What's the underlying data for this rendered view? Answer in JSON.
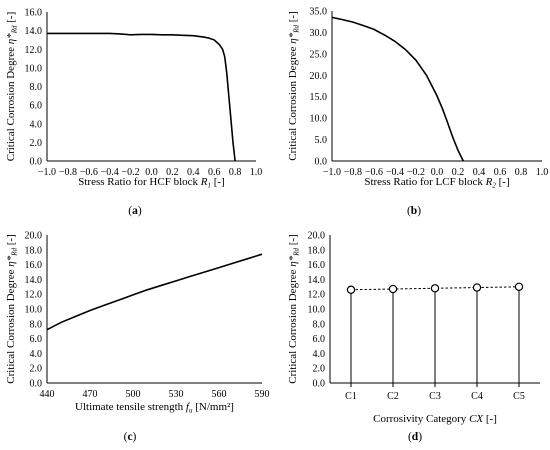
{
  "chart_data": [
    {
      "type": "line",
      "panel_label": "(a)",
      "xlabel": {
        "text": "Stress Ratio for HCF block ",
        "var": "R",
        "sub": "1",
        "unit": " [-]"
      },
      "ylabel": {
        "text": "Critical Corrosion Degree ",
        "var": "η*",
        "sub": "Rd",
        "unit": " [-]"
      },
      "xlim": [
        -1.0,
        1.0
      ],
      "ylim": [
        0.0,
        16.0
      ],
      "xticks": [
        "−1.0",
        "−0.8",
        "−0.6",
        "−0.4",
        "−0.2",
        "0.0",
        "0.2",
        "0.4",
        "0.6",
        "0.8",
        "1.0"
      ],
      "yticks": [
        "0.0",
        "2.0",
        "4.0",
        "6.0",
        "8.0",
        "10.0",
        "12.0",
        "14.0",
        "16.0"
      ],
      "series": [
        {
          "x": [
            -1.0,
            -0.8,
            -0.6,
            -0.4,
            -0.3,
            -0.2,
            -0.1,
            0.0,
            0.1,
            0.2,
            0.3,
            0.4,
            0.5,
            0.55,
            0.6,
            0.65,
            0.68,
            0.7,
            0.72,
            0.74,
            0.76,
            0.78,
            0.8
          ],
          "y": [
            13.7,
            13.7,
            13.7,
            13.7,
            13.65,
            13.55,
            13.6,
            13.6,
            13.55,
            13.55,
            13.5,
            13.45,
            13.3,
            13.2,
            13.0,
            12.5,
            12.0,
            11.2,
            9.5,
            7.0,
            4.5,
            2.0,
            0.0
          ]
        }
      ]
    },
    {
      "type": "line",
      "panel_label": "(b)",
      "xlabel": {
        "text": "Stress Ratio for LCF block ",
        "var": "R",
        "sub": "2",
        "unit": " [-]"
      },
      "ylabel": {
        "text": "Critical Corrosion Degree ",
        "var": "η*",
        "sub": "Rd",
        "unit": " [-]"
      },
      "xlim": [
        -1.0,
        1.0
      ],
      "ylim": [
        0.0,
        35.0
      ],
      "xticks": [
        "−1.0",
        "−0.8",
        "−0.6",
        "−0.4",
        "−0.2",
        "0.0",
        "0.2",
        "0.4",
        "0.6",
        "0.8",
        "1.0"
      ],
      "yticks": [
        "0.0",
        "5.0",
        "10.0",
        "15.0",
        "20.0",
        "25.0",
        "30.0",
        "35.0"
      ],
      "series": [
        {
          "x": [
            -1.0,
            -0.9,
            -0.8,
            -0.7,
            -0.6,
            -0.5,
            -0.4,
            -0.3,
            -0.2,
            -0.1,
            0.0,
            0.05,
            0.1,
            0.15,
            0.2,
            0.25
          ],
          "y": [
            33.5,
            33.0,
            32.4,
            31.6,
            30.7,
            29.4,
            27.9,
            26.0,
            23.5,
            20.0,
            15.2,
            12.3,
            9.0,
            5.5,
            2.5,
            0.0
          ]
        }
      ]
    },
    {
      "type": "line",
      "panel_label": "(c)",
      "xlabel": {
        "text": "Ultimate tensile strength ",
        "var": "f",
        "sub": "u",
        "unit": " [N/mm²]"
      },
      "ylabel": {
        "text": "Critical Corrosion Degree ",
        "var": "η*",
        "sub": "Rd",
        "unit": " [-]"
      },
      "xlim": [
        440,
        590
      ],
      "ylim": [
        0.0,
        20.0
      ],
      "xticks": [
        "440",
        "470",
        "500",
        "530",
        "560",
        "590"
      ],
      "yticks": [
        "0.0",
        "2.0",
        "4.0",
        "6.0",
        "8.0",
        "10.0",
        "12.0",
        "14.0",
        "16.0",
        "18.0",
        "20.0"
      ],
      "series": [
        {
          "x": [
            440,
            450,
            460,
            470,
            480,
            490,
            500,
            510,
            520,
            530,
            540,
            550,
            560,
            570,
            580,
            590
          ],
          "y": [
            7.2,
            8.2,
            9.0,
            9.8,
            10.5,
            11.2,
            11.9,
            12.6,
            13.2,
            13.8,
            14.4,
            15.0,
            15.6,
            16.2,
            16.8,
            17.4
          ]
        }
      ]
    },
    {
      "type": "scatter",
      "panel_label": "(d)",
      "xlabel": {
        "text": "Corrosivity Category ",
        "var": "CX",
        "sub": "",
        "unit": " [-]"
      },
      "ylabel": {
        "text": "Critical Corrosion Degree ",
        "var": "η*",
        "sub": "Rd",
        "unit": " [-]"
      },
      "categories": [
        "C1",
        "C2",
        "C3",
        "C4",
        "C5"
      ],
      "ylim": [
        0.0,
        20.0
      ],
      "yticks": [
        "0.0",
        "2.0",
        "4.0",
        "6.0",
        "8.0",
        "10.0",
        "12.0",
        "14.0",
        "16.0",
        "18.0",
        "20.0"
      ],
      "series": [
        {
          "values": [
            12.6,
            12.7,
            12.8,
            12.9,
            13.0
          ]
        }
      ]
    }
  ]
}
